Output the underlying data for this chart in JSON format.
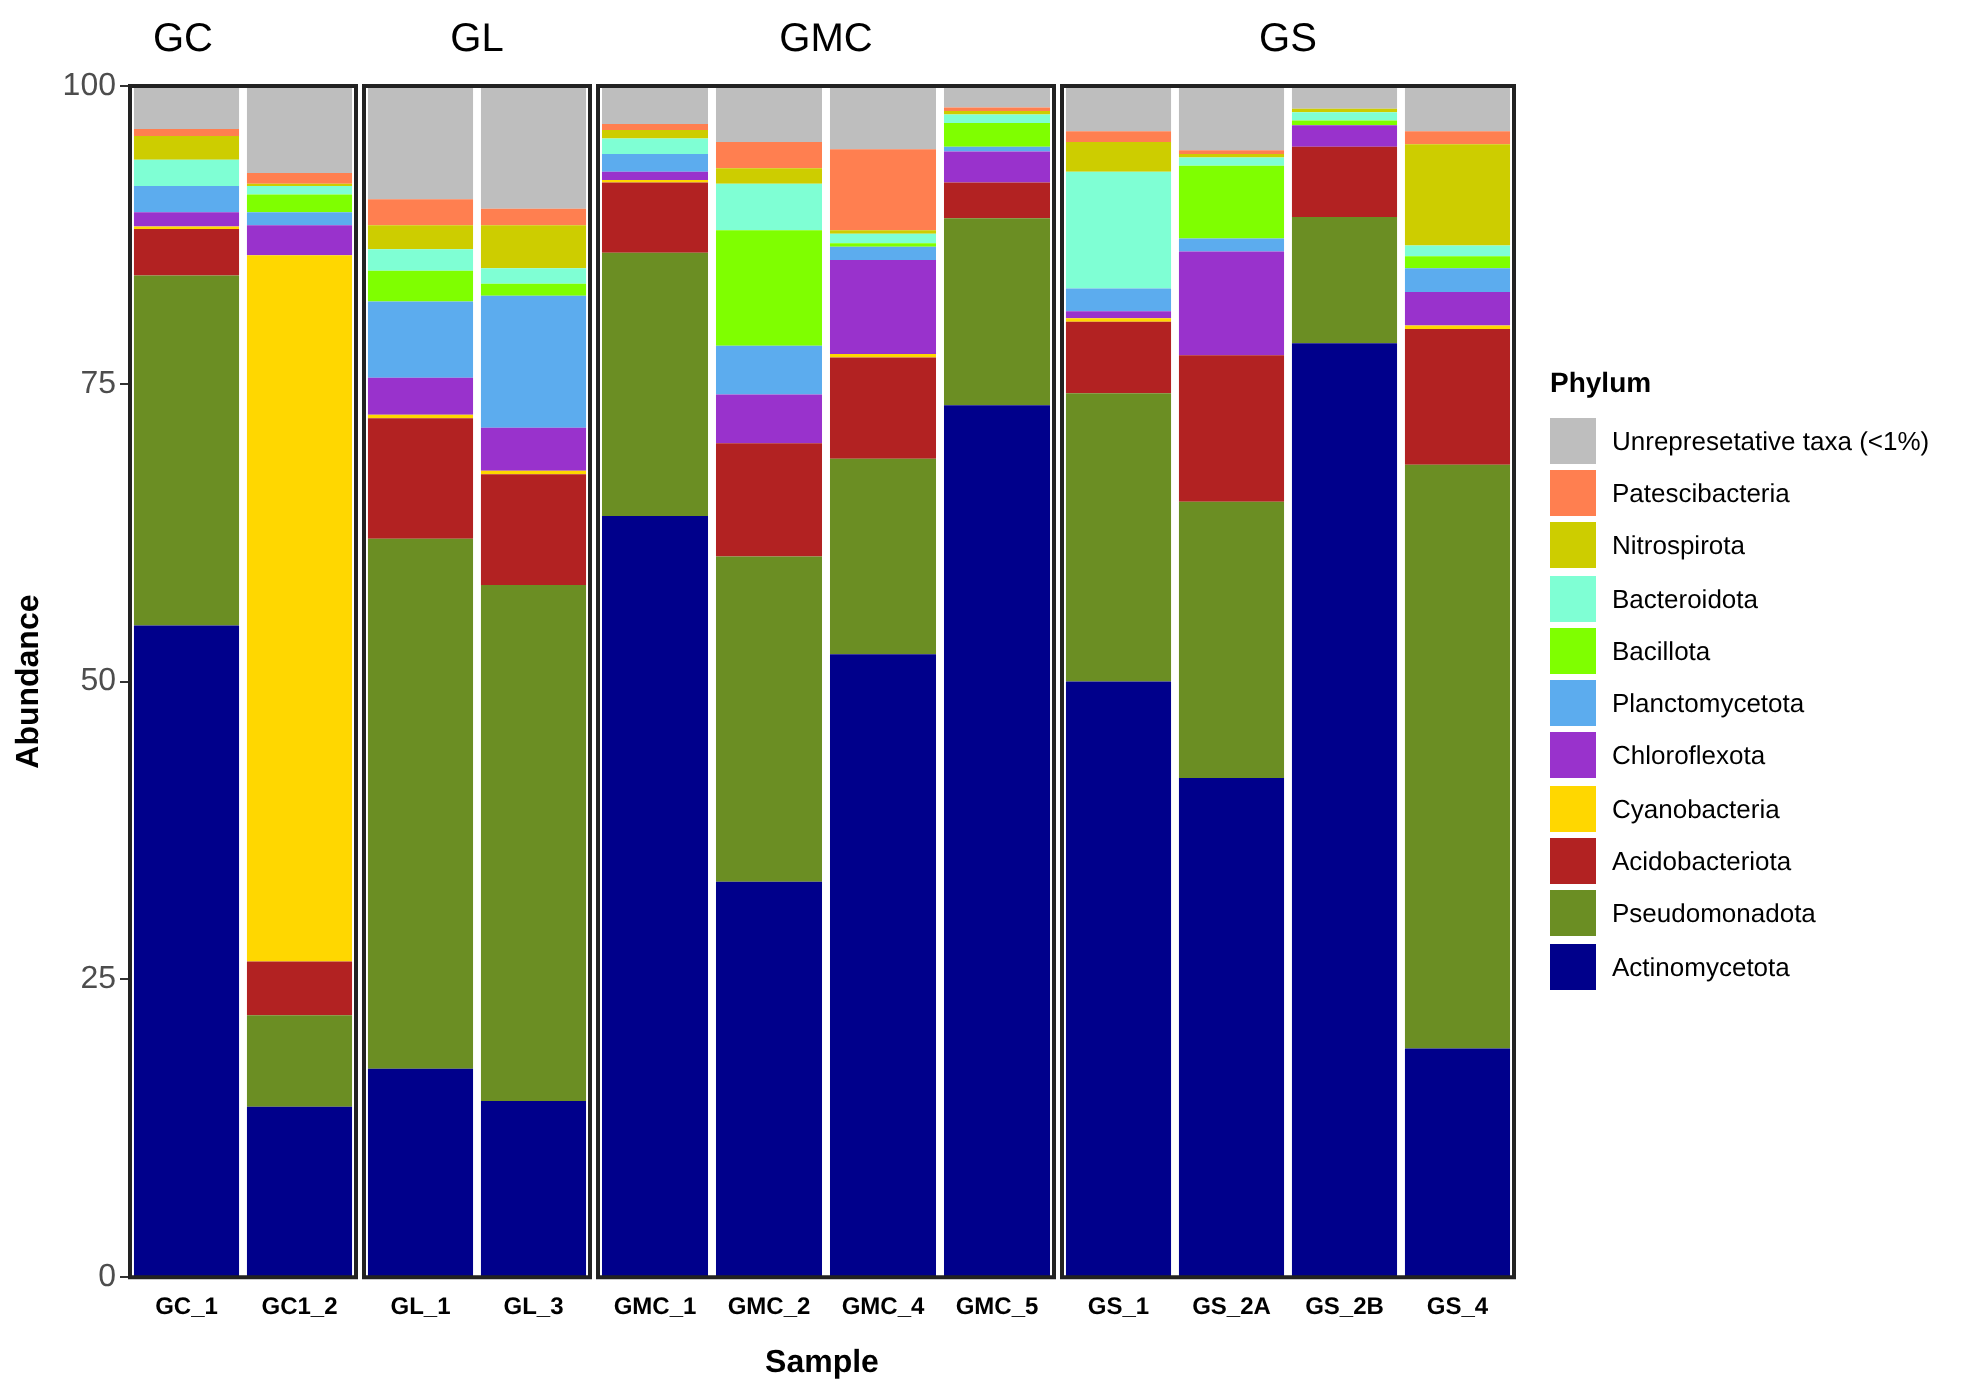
{
  "chart_data": [
    {
      "type": "bar",
      "title": "GC",
      "ylabel": "Abundance",
      "stacked": true,
      "ylim": [
        0,
        100
      ],
      "yticks": [
        0,
        25,
        50,
        75,
        100
      ],
      "grid": false,
      "categories": [
        "GC_1",
        "GC1_2"
      ],
      "series": [
        {
          "color": "#00008b",
          "values": [
            54.7,
            14.3
          ]
        },
        {
          "color": "#6b8e23",
          "values": [
            29.4,
            7.7
          ]
        },
        {
          "color": "#b22222",
          "values": [
            3.9,
            4.5
          ]
        },
        {
          "color": "#ffd700",
          "values": [
            0.2,
            59.3
          ]
        },
        {
          "color": "#9932cc",
          "values": [
            1.2,
            2.5
          ]
        },
        {
          "color": "#5cacee",
          "values": [
            2.2,
            1.1
          ]
        },
        {
          "color": "#7fff00",
          "values": [
            0,
            1.5
          ]
        },
        {
          "color": "#7fffd4",
          "values": [
            2.2,
            0.7
          ]
        },
        {
          "color": "#cdcd00",
          "values": [
            2.0,
            0.2
          ]
        },
        {
          "color": "#ff7f50",
          "values": [
            0.6,
            0.9
          ]
        },
        {
          "color": "#bebebe",
          "values": [
            3.6,
            7.3
          ]
        }
      ]
    },
    {
      "type": "bar",
      "title": "GL",
      "stacked": true,
      "ylim": [
        0,
        100
      ],
      "tick_labels": "x",
      "grid": false,
      "categories": [
        "GL_1",
        "GL_3"
      ],
      "series": [
        {
          "color": "#00008b",
          "values": [
            17.5,
            14.8
          ]
        },
        {
          "color": "#6b8e23",
          "values": [
            44.5,
            43.3
          ]
        },
        {
          "color": "#b22222",
          "values": [
            10.1,
            9.3
          ]
        },
        {
          "color": "#ffd700",
          "values": [
            0.3,
            0.3
          ]
        },
        {
          "color": "#9932cc",
          "values": [
            3.1,
            3.6
          ]
        },
        {
          "color": "#5cacee",
          "values": [
            6.4,
            11.1
          ]
        },
        {
          "color": "#7fff00",
          "values": [
            2.6,
            1.0
          ]
        },
        {
          "color": "#7fffd4",
          "values": [
            1.8,
            1.3
          ]
        },
        {
          "color": "#cdcd00",
          "values": [
            2.0,
            3.6
          ]
        },
        {
          "color": "#ff7f50",
          "values": [
            2.2,
            1.4
          ]
        },
        {
          "color": "#bebebe",
          "values": [
            9.5,
            10.3
          ]
        }
      ]
    },
    {
      "type": "bar",
      "title": "GMC",
      "xlabel": "Sample",
      "stacked": true,
      "ylim": [
        0,
        100
      ],
      "tick_labels": "x",
      "grid": false,
      "categories": [
        "GMC_1",
        "GMC_2",
        "GMC_4",
        "GMC_5"
      ],
      "series": [
        {
          "color": "#00008b",
          "values": [
            63.9,
            33.2,
            52.3,
            73.2
          ]
        },
        {
          "color": "#6b8e23",
          "values": [
            22.1,
            27.3,
            16.4,
            15.7
          ]
        },
        {
          "color": "#b22222",
          "values": [
            5.9,
            9.5,
            8.5,
            3.0
          ]
        },
        {
          "color": "#ffd700",
          "values": [
            0.2,
            0,
            0.3,
            0
          ]
        },
        {
          "color": "#9932cc",
          "values": [
            0.7,
            4.1,
            7.9,
            2.6
          ]
        },
        {
          "color": "#5cacee",
          "values": [
            1.5,
            4.1,
            1.1,
            0.4
          ]
        },
        {
          "color": "#7fff00",
          "values": [
            0,
            9.7,
            0.3,
            2.0
          ]
        },
        {
          "color": "#7fffd4",
          "values": [
            1.3,
            3.9,
            0.8,
            0.7
          ]
        },
        {
          "color": "#cdcd00",
          "values": [
            0.7,
            1.3,
            0.3,
            0.3
          ]
        },
        {
          "color": "#ff7f50",
          "values": [
            0.5,
            2.2,
            6.8,
            0.3
          ]
        },
        {
          "color": "#bebebe",
          "values": [
            3.2,
            4.7,
            5.3,
            1.8
          ]
        }
      ]
    },
    {
      "type": "bar",
      "title": "GS",
      "stacked": true,
      "ylim": [
        0,
        100
      ],
      "tick_labels": "x",
      "grid": false,
      "legend": "right",
      "legend_title": "Phylum",
      "categories": [
        "GS_1",
        "GS_2A",
        "GS_2B",
        "GS_4"
      ],
      "series": [
        {
          "name": "Actinomycetota",
          "color": "#00008b",
          "values": [
            50.0,
            41.9,
            78.4,
            19.2
          ]
        },
        {
          "name": "Pseudomonadota",
          "color": "#6b8e23",
          "values": [
            24.2,
            23.2,
            10.6,
            49.0
          ]
        },
        {
          "name": "Acidobacteriota",
          "color": "#b22222",
          "values": [
            6.0,
            12.3,
            5.9,
            11.4
          ]
        },
        {
          "name": "Cyanobacteria",
          "color": "#ffd700",
          "values": [
            0.3,
            0,
            0,
            0.3
          ]
        },
        {
          "name": "Chloroflexota",
          "color": "#9932cc",
          "values": [
            0.6,
            8.7,
            1.8,
            2.8
          ]
        },
        {
          "name": "Planctomycetota",
          "color": "#5cacee",
          "values": [
            1.9,
            1.1,
            0,
            2.0
          ]
        },
        {
          "name": "Bacillota",
          "color": "#7fff00",
          "values": [
            0,
            6.1,
            0.4,
            1.0
          ]
        },
        {
          "name": "Bacteroidota",
          "color": "#7fffd4",
          "values": [
            9.8,
            0.7,
            0.7,
            0.9
          ]
        },
        {
          "name": "Nitrospirota",
          "color": "#cdcd00",
          "values": [
            2.5,
            0.3,
            0.3,
            8.5
          ]
        },
        {
          "name": "Patescibacteria",
          "color": "#ff7f50",
          "values": [
            0.9,
            0.3,
            0,
            1.1
          ]
        },
        {
          "name": "Unrepresetative taxa (<1%)",
          "color": "#bebebe",
          "values": [
            3.8,
            5.4,
            1.9,
            3.8
          ]
        }
      ]
    }
  ]
}
